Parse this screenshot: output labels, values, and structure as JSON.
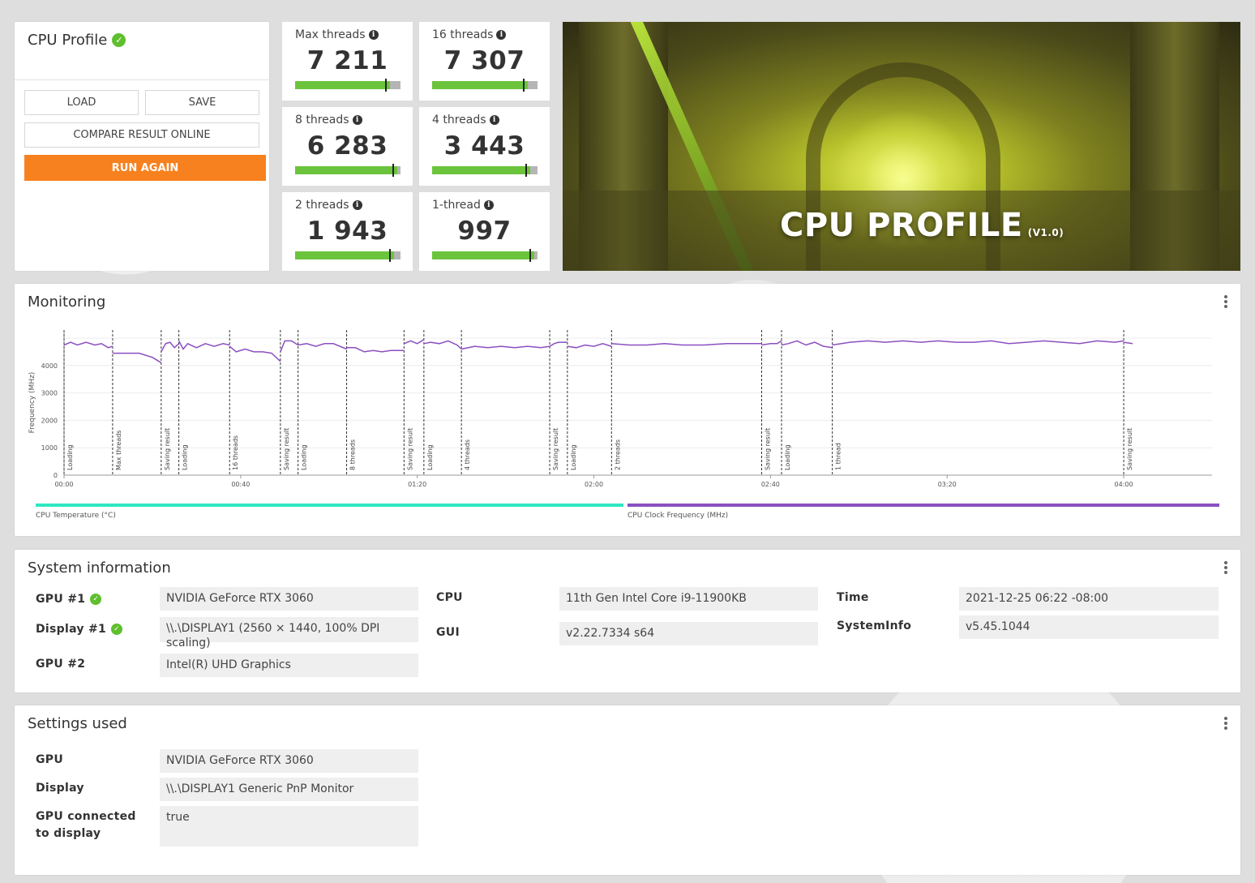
{
  "profile": {
    "title": "CPU Profile",
    "load_label": "LOAD",
    "save_label": "SAVE",
    "compare_label": "COMPARE RESULT ONLINE",
    "run_label": "RUN AGAIN"
  },
  "scores": [
    {
      "label": "Max threads",
      "value": "7 211",
      "level": 0.9
    },
    {
      "label": "16 threads",
      "value": "7 307",
      "level": 0.91
    },
    {
      "label": "8 threads",
      "value": "6 283",
      "level": 0.97
    },
    {
      "label": "4 threads",
      "value": "3 443",
      "level": 0.93
    },
    {
      "label": "2 threads",
      "value": "1 943",
      "level": 0.94
    },
    {
      "label": "1-thread",
      "value": "997",
      "level": 0.97
    }
  ],
  "hero": {
    "title": "CPU PROFILE",
    "version": "(V1.0)"
  },
  "monitoring": {
    "title": "Monitoring",
    "legend_temp": "CPU Temperature (°C)",
    "legend_clock": "CPU Clock Frequency (MHz)",
    "colors": {
      "temp": "#2ee8c1",
      "clock": "#8b4fc1"
    }
  },
  "chart_data": {
    "type": "line",
    "ylabel": "Frequency (MHz)",
    "yticks": [
      0,
      1000,
      2000,
      3000,
      4000
    ],
    "ylim": [
      0,
      5000
    ],
    "xticks": [
      "00:00",
      "00:40",
      "01:20",
      "02:00",
      "02:40",
      "03:20",
      "04:00"
    ],
    "xlim_seconds": [
      0,
      260
    ],
    "markers": [
      {
        "t": 0,
        "label": "Loading"
      },
      {
        "t": 11,
        "label": "Max threads"
      },
      {
        "t": 22,
        "label": "Saving result"
      },
      {
        "t": 26,
        "label": "Loading"
      },
      {
        "t": 37.5,
        "label": "16 threads"
      },
      {
        "t": 49,
        "label": "Saving result"
      },
      {
        "t": 53,
        "label": "Loading"
      },
      {
        "t": 64,
        "label": "8 threads"
      },
      {
        "t": 77,
        "label": "Saving result"
      },
      {
        "t": 81.5,
        "label": "Loading"
      },
      {
        "t": 90,
        "label": "4 threads"
      },
      {
        "t": 110,
        "label": "Saving result"
      },
      {
        "t": 114,
        "label": "Loading"
      },
      {
        "t": 124,
        "label": "2 threads"
      },
      {
        "t": 158,
        "label": "Saving result"
      },
      {
        "t": 162.5,
        "label": "Loading"
      },
      {
        "t": 174,
        "label": "1 thread"
      },
      {
        "t": 240,
        "label": "Saving result"
      }
    ],
    "series": [
      {
        "name": "CPU Clock Frequency (MHz)",
        "segments": [
          {
            "t": [
              0,
              1.5,
              3,
              5,
              7,
              8.5,
              10,
              11
            ],
            "v": [
              4750,
              4850,
              4750,
              4850,
              4750,
              4800,
              4650,
              4700
            ]
          },
          {
            "t": [
              11,
              14,
              17,
              20,
              21.5,
              22
            ],
            "v": [
              4450,
              4450,
              4450,
              4300,
              4150,
              4100
            ]
          },
          {
            "t": [
              22,
              23,
              24,
              25,
              26
            ],
            "v": [
              4500,
              4800,
              4850,
              4650,
              4800
            ]
          },
          {
            "t": [
              26,
              27,
              28,
              30,
              32,
              34,
              36,
              37.5
            ],
            "v": [
              4900,
              4600,
              4800,
              4650,
              4800,
              4700,
              4800,
              4750
            ]
          },
          {
            "t": [
              37.5,
              39,
              41,
              43,
              45,
              47,
              49
            ],
            "v": [
              4700,
              4500,
              4600,
              4500,
              4500,
              4450,
              4150
            ]
          },
          {
            "t": [
              49,
              50,
              51.5,
              53
            ],
            "v": [
              4500,
              4900,
              4900,
              4750
            ]
          },
          {
            "t": [
              53,
              55,
              57,
              59,
              61,
              64
            ],
            "v": [
              4750,
              4800,
              4700,
              4800,
              4800,
              4600
            ]
          },
          {
            "t": [
              64,
              66,
              68,
              70,
              72,
              74,
              77
            ],
            "v": [
              4650,
              4650,
              4500,
              4550,
              4500,
              4550,
              4550
            ]
          },
          {
            "t": [
              77,
              78.5,
              80,
              81.5
            ],
            "v": [
              4800,
              4900,
              4800,
              4950
            ]
          },
          {
            "t": [
              81.5,
              83,
              85,
              87,
              89,
              90
            ],
            "v": [
              4800,
              4850,
              4800,
              4900,
              4750,
              4600
            ]
          },
          {
            "t": [
              90,
              93,
              96,
              99,
              102,
              105,
              108,
              110
            ],
            "v": [
              4600,
              4700,
              4650,
              4700,
              4650,
              4700,
              4650,
              4700
            ]
          },
          {
            "t": [
              110,
              111,
              112,
              114
            ],
            "v": [
              4700,
              4800,
              4850,
              4850
            ]
          },
          {
            "t": [
              114,
              116,
              118,
              120,
              122,
              124
            ],
            "v": [
              4700,
              4650,
              4750,
              4700,
              4800,
              4700
            ]
          },
          {
            "t": [
              124,
              128,
              132,
              136,
              140,
              145,
              150,
              154,
              158
            ],
            "v": [
              4800,
              4750,
              4750,
              4800,
              4750,
              4750,
              4800,
              4800,
              4800
            ]
          },
          {
            "t": [
              158,
              160,
              161.5,
              162.5
            ],
            "v": [
              4750,
              4800,
              4800,
              4900
            ]
          },
          {
            "t": [
              162.5,
              164,
              166,
              168,
              170,
              172,
              174
            ],
            "v": [
              4750,
              4800,
              4900,
              4750,
              4850,
              4700,
              4650
            ]
          },
          {
            "t": [
              174,
              178,
              182,
              186,
              190,
              194,
              198,
              202,
              206,
              210,
              214,
              218,
              222,
              226,
              230,
              234,
              238,
              240
            ],
            "v": [
              4750,
              4850,
              4900,
              4850,
              4900,
              4850,
              4900,
              4850,
              4850,
              4900,
              4800,
              4850,
              4900,
              4850,
              4800,
              4900,
              4850,
              4900
            ]
          },
          {
            "t": [
              240,
              242
            ],
            "v": [
              4850,
              4800
            ]
          }
        ]
      }
    ]
  },
  "sysinfo": {
    "title": "System information",
    "gpu1_label": "GPU #1",
    "gpu1_value": "NVIDIA GeForce RTX 3060",
    "display1_label": "Display #1",
    "display1_value": "\\\\.\\DISPLAY1 (2560 × 1440, 100% DPI scaling)",
    "gpu2_label": "GPU #2",
    "gpu2_value": "Intel(R) UHD Graphics",
    "cpu_label": "CPU",
    "cpu_value": "11th Gen Intel Core i9-11900KB",
    "gui_label": "GUI",
    "gui_value": "v2.22.7334 s64",
    "time_label": "Time",
    "time_value": "2021-12-25 06:22 -08:00",
    "systeminfo_label": "SystemInfo",
    "systeminfo_value": "v5.45.1044"
  },
  "settings": {
    "title": "Settings used",
    "gpu_label": "GPU",
    "gpu_value": "NVIDIA GeForce RTX 3060",
    "display_label": "Display",
    "display_value": "\\\\.\\DISPLAY1 Generic PnP Monitor",
    "connected_label": "GPU connected to display",
    "connected_value": "true"
  },
  "accent": {
    "run": "#f7811e",
    "success": "#5fbf2e",
    "bar": "#6cc43c"
  }
}
